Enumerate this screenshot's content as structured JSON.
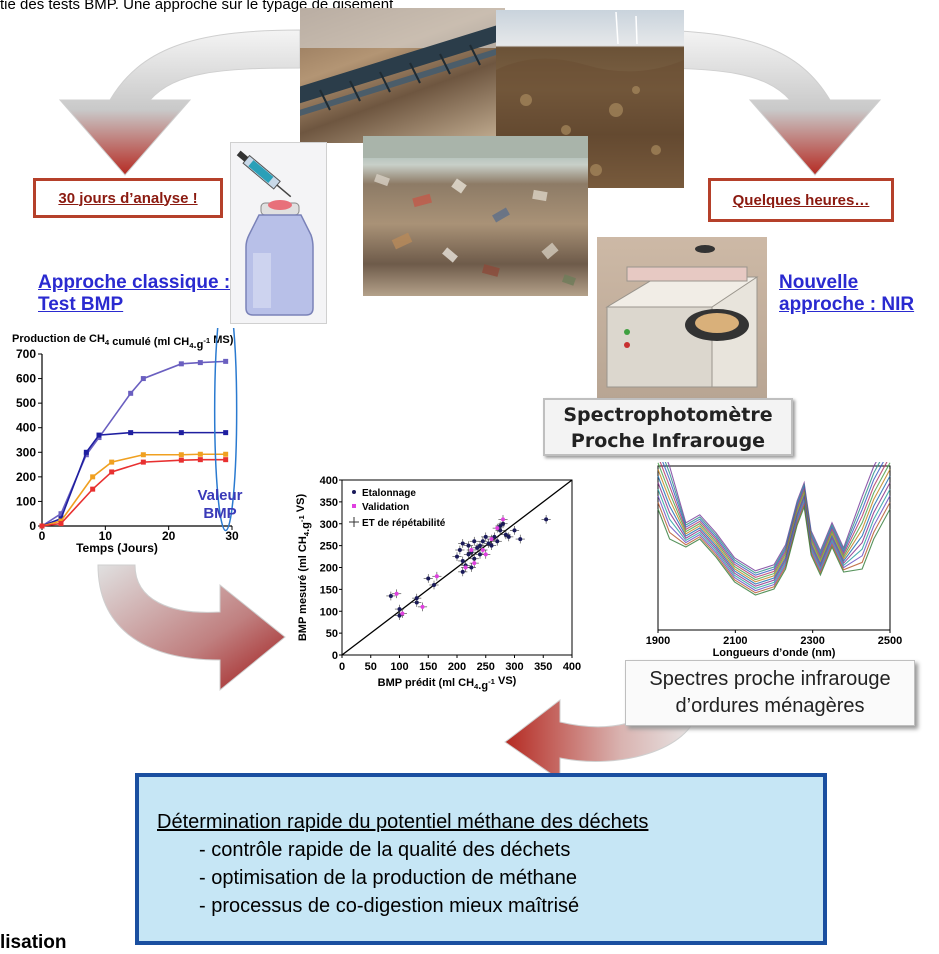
{
  "header_text": "tie des tests BMP. Une approche sur le typage de gisement",
  "footer_text": "lisation",
  "label_left": "30 jours d’analyse !",
  "label_right": "Quelques heures…",
  "approach_left": [
    "Approche classique :",
    "Test BMP"
  ],
  "approach_right": [
    "Nouvelle",
    "approche : NIR"
  ],
  "spectro_label": [
    "Spectrophotomètre",
    "Proche Infrarouge"
  ],
  "spectra_label": [
    "Spectres proche infrarouge",
    "d’ordures ménagères"
  ],
  "result": {
    "title": "Détermination rapide du potentiel méthane des déchets",
    "items": [
      "- contrôle rapide de la qualité des déchets",
      "- optimisation de la production de méthane",
      "- processus de co-digestion mieux maîtrisé"
    ]
  },
  "colors": {
    "arrow_red": "#b52a22",
    "label_border": "#b5402a",
    "approach_blue": "#2a2ad0",
    "result_bg": "#c6e6f5",
    "result_border": "#1a4fa0"
  },
  "chart_data": [
    {
      "type": "line",
      "title": "Production de CH4 cumulé (ml CH4.g-1 MS)",
      "xlabel": "Temps (Jours)",
      "ylabel": "",
      "xlim": [
        0,
        30
      ],
      "ylim": [
        0,
        700
      ],
      "xticks": [
        0,
        10,
        20,
        30
      ],
      "yticks": [
        0,
        100,
        200,
        300,
        400,
        500,
        600,
        700
      ],
      "annotation": "Valeur BMP",
      "series": [
        {
          "color": "#6a5fc0",
          "x": [
            0,
            3,
            7,
            9,
            14,
            16,
            22,
            25,
            29
          ],
          "y": [
            0,
            50,
            290,
            360,
            540,
            600,
            660,
            665,
            670
          ]
        },
        {
          "color": "#1f1fa0",
          "x": [
            0,
            3,
            7,
            9,
            14,
            22,
            29
          ],
          "y": [
            0,
            30,
            300,
            370,
            380,
            380,
            380
          ]
        },
        {
          "color": "#f0a020",
          "x": [
            0,
            3,
            8,
            11,
            16,
            22,
            25,
            29
          ],
          "y": [
            0,
            20,
            200,
            260,
            290,
            290,
            292,
            292
          ]
        },
        {
          "color": "#e83030",
          "x": [
            0,
            3,
            8,
            11,
            16,
            22,
            25,
            29
          ],
          "y": [
            0,
            10,
            150,
            220,
            260,
            268,
            270,
            270
          ]
        }
      ]
    },
    {
      "type": "scatter",
      "title": "",
      "xlabel": "BMP prédit (ml CH4.g-1 VS)",
      "ylabel": "BMP mesuré (ml CH4.g-1 VS)",
      "xlim": [
        0,
        400
      ],
      "ylim": [
        0,
        400
      ],
      "xticks": [
        0,
        50,
        100,
        150,
        200,
        250,
        300,
        350,
        400
      ],
      "yticks": [
        0,
        50,
        100,
        150,
        200,
        250,
        300,
        350,
        400
      ],
      "legend": [
        "Etalonnage",
        "Validation",
        "ET de répétabilité"
      ],
      "series": [
        {
          "name": "Etalonnage",
          "color": "#1a1a5a",
          "points": [
            [
              85,
              135
            ],
            [
              100,
              90
            ],
            [
              100,
              105
            ],
            [
              130,
              120
            ],
            [
              130,
              130
            ],
            [
              150,
              175
            ],
            [
              160,
              160
            ],
            [
              200,
              225
            ],
            [
              205,
              240
            ],
            [
              210,
              190
            ],
            [
              210,
              215
            ],
            [
              215,
              205
            ],
            [
              220,
              230
            ],
            [
              220,
              250
            ],
            [
              225,
              235
            ],
            [
              230,
              220
            ],
            [
              230,
              260
            ],
            [
              235,
              245
            ],
            [
              240,
              250
            ],
            [
              240,
              230
            ],
            [
              245,
              260
            ],
            [
              250,
              270
            ],
            [
              255,
              255
            ],
            [
              260,
              250
            ],
            [
              265,
              270
            ],
            [
              270,
              260
            ],
            [
              275,
              285
            ],
            [
              275,
              295
            ],
            [
              280,
              300
            ],
            [
              285,
              275
            ],
            [
              290,
              270
            ],
            [
              300,
              285
            ],
            [
              310,
              265
            ],
            [
              355,
              310
            ],
            [
              210,
              255
            ],
            [
              225,
              200
            ]
          ]
        },
        {
          "name": "Validation",
          "color": "#e040e0",
          "points": [
            [
              95,
              140
            ],
            [
              105,
              95
            ],
            [
              140,
              110
            ],
            [
              165,
              180
            ],
            [
              215,
              200
            ],
            [
              225,
              240
            ],
            [
              245,
              240
            ],
            [
              260,
              265
            ],
            [
              270,
              290
            ],
            [
              280,
              310
            ],
            [
              230,
              210
            ],
            [
              250,
              230
            ]
          ]
        }
      ]
    },
    {
      "type": "line",
      "title": "",
      "xlabel": "Longueurs d’onde (nm)",
      "ylabel": "",
      "xlim": [
        1900,
        2500
      ],
      "xticks": [
        1900,
        2100,
        2300,
        2500
      ]
    }
  ]
}
